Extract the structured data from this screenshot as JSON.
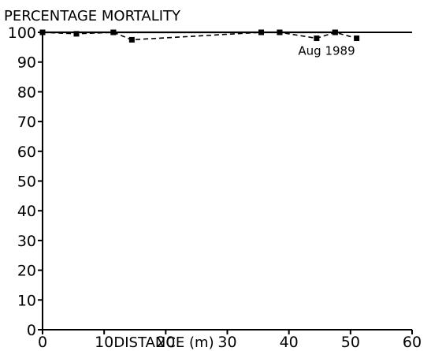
{
  "chart_data": {
    "type": "line",
    "ylabel": "PERCENTAGE MORTALITY",
    "xlabel": "DISTANCE (m)",
    "xlim": [
      0,
      60
    ],
    "ylim": [
      0,
      100
    ],
    "x_ticks": [
      0,
      10,
      20,
      30,
      40,
      50,
      60
    ],
    "y_ticks": [
      0,
      10,
      20,
      30,
      40,
      50,
      60,
      70,
      80,
      90,
      100
    ],
    "grid": false,
    "series": [
      {
        "style": "solid",
        "x": [
          0,
          11.5,
          35.5,
          38.5,
          47.5
        ],
        "y": [
          100,
          100,
          100,
          100,
          100
        ]
      },
      {
        "name": "Aug 1989",
        "style": "dashed",
        "x": [
          0,
          5.5,
          11.5,
          14.5,
          35.5,
          38.5,
          44.5,
          47.5,
          51
        ],
        "y": [
          100,
          99.5,
          100,
          97.5,
          100,
          100,
          98,
          100,
          98
        ]
      }
    ],
    "annotations": [
      {
        "text": "Aug 1989",
        "x": 41.5,
        "y": 92.5
      }
    ]
  }
}
